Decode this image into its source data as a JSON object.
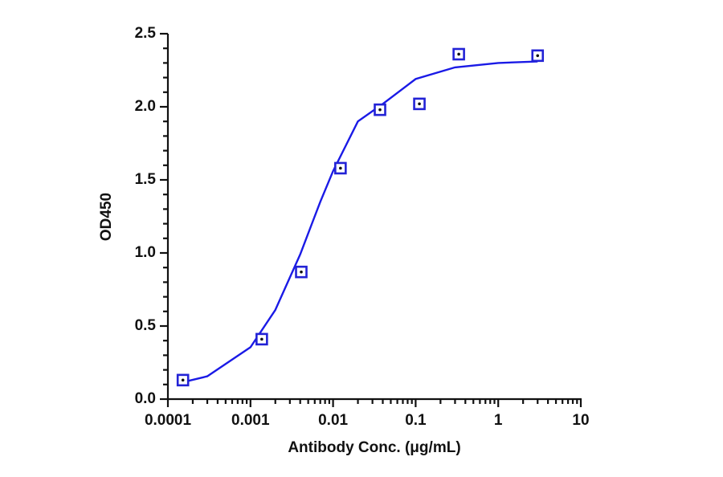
{
  "chart_data": {
    "type": "scatter",
    "xlabel": "Antibody Conc. (μg/mL)",
    "ylabel": "OD450",
    "xscale": "log",
    "xlim": [
      0.0001,
      10
    ],
    "xticks": [
      0.0001,
      0.001,
      0.01,
      0.1,
      1,
      10
    ],
    "ylim": [
      0,
      2.5
    ],
    "yticks": [
      {
        "value": 0,
        "label": "0.0"
      },
      {
        "value": 0.5,
        "label": "0.5"
      },
      {
        "value": 1,
        "label": "1.0"
      },
      {
        "value": 1.5,
        "label": "1.5"
      },
      {
        "value": 2,
        "label": "2.0"
      },
      {
        "value": 2.5,
        "label": "2.5"
      }
    ],
    "color": "#2222d6",
    "x": [
      0.000152,
      0.00137,
      0.00412,
      0.0123,
      0.037,
      0.111,
      0.333,
      3
    ],
    "values": [
      0.13,
      0.41,
      0.87,
      1.58,
      1.98,
      2.02,
      2.36,
      2.35
    ],
    "fit": {
      "color": "#1a1ae6",
      "x": [
        0.00015,
        0.0003,
        0.001,
        0.002,
        0.004,
        0.0055,
        0.007,
        0.01,
        0.02,
        0.04,
        0.1,
        0.3,
        1,
        3
      ],
      "values": [
        0.115,
        0.156,
        0.355,
        0.61,
        0.99,
        1.195,
        1.35,
        1.56,
        1.9,
        2.02,
        2.19,
        2.27,
        2.3,
        2.31
      ]
    }
  }
}
